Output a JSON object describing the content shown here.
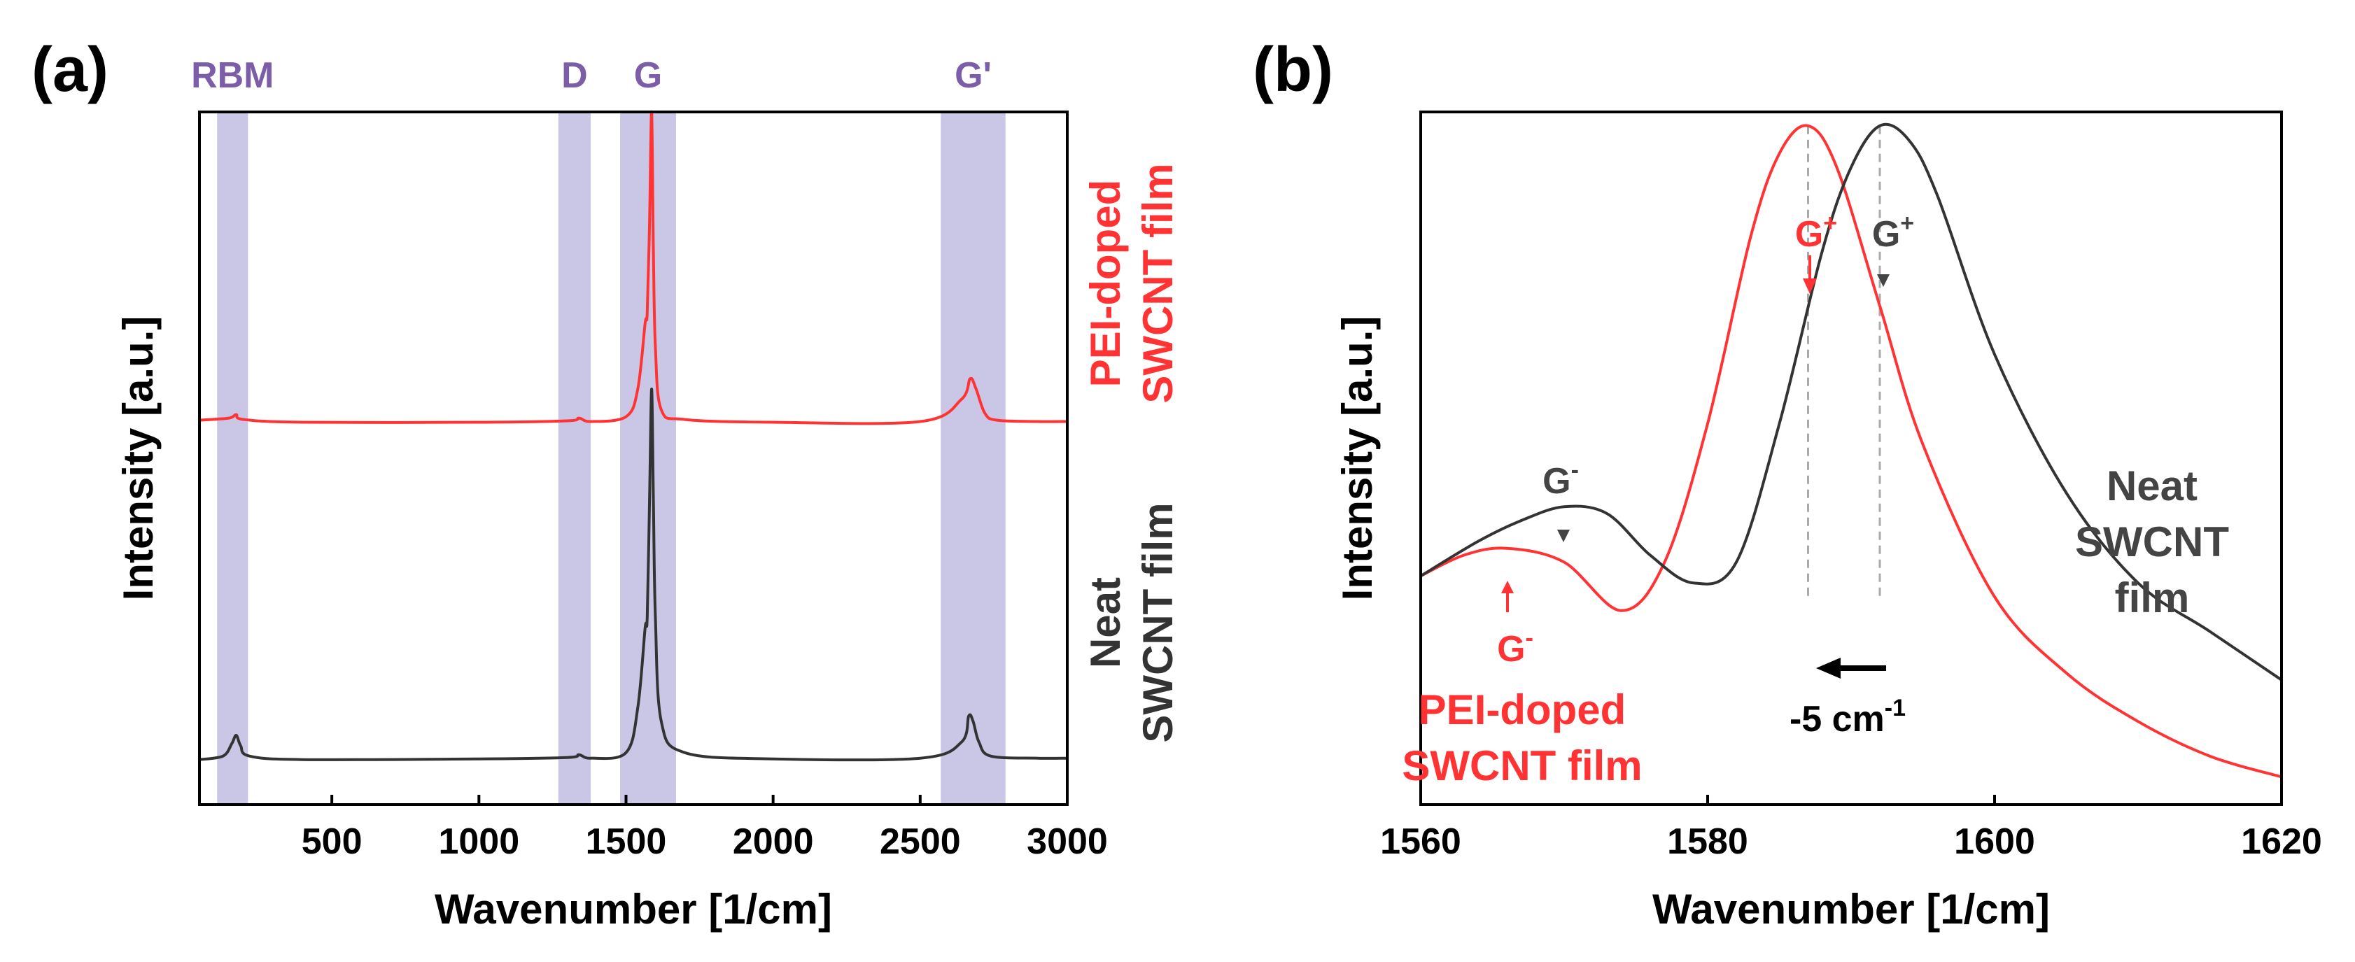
{
  "colors": {
    "red": "#ff3333",
    "black": "#333333",
    "band": "#c9c6e6",
    "band_label": "#7b5ea7",
    "guide": "#aaaaaa"
  },
  "chart_data": [
    {
      "type": "line",
      "panel": "(a)",
      "xlabel": "Wavenumber [1/cm]",
      "ylabel": "Intensity [a.u.]",
      "xlim": [
        50,
        3000
      ],
      "ylim": [
        0,
        1
      ],
      "xticks": [
        500,
        1000,
        1500,
        2000,
        2500,
        3000
      ],
      "xtick_labels": [
        "500",
        "1000",
        "1500",
        "2000",
        "2500",
        "3000"
      ],
      "bands": [
        {
          "label": "RBM",
          "from": 110,
          "to": 215
        },
        {
          "label": "D",
          "from": 1270,
          "to": 1380
        },
        {
          "label": "G",
          "from": 1480,
          "to": 1670
        },
        {
          "label": "G'",
          "from": 2570,
          "to": 2790
        }
      ],
      "series": [
        {
          "name": "PEI-doped SWCNT film",
          "color": "#ff3333",
          "x": [
            50,
            150,
            175,
            200,
            400,
            1000,
            1300,
            1340,
            1380,
            1500,
            1540,
            1565,
            1572,
            1580,
            1587,
            1593,
            1600,
            1620,
            1700,
            2000,
            2500,
            2640,
            2670,
            2690,
            2720,
            2760,
            2900,
            3000
          ],
          "y": [
            0.555,
            0.558,
            0.563,
            0.556,
            0.552,
            0.552,
            0.554,
            0.558,
            0.553,
            0.56,
            0.6,
            0.695,
            0.71,
            0.84,
            1.0,
            0.8,
            0.66,
            0.57,
            0.556,
            0.552,
            0.553,
            0.585,
            0.615,
            0.6,
            0.565,
            0.555,
            0.553,
            0.553
          ],
          "label_lines": [
            "PEI-doped",
            "SWCNT film"
          ]
        },
        {
          "name": "Neat SWCNT film",
          "color": "#333333",
          "x": [
            50,
            130,
            160,
            175,
            190,
            220,
            400,
            1000,
            1300,
            1340,
            1380,
            1500,
            1540,
            1565,
            1572,
            1580,
            1587,
            1593,
            1600,
            1620,
            1700,
            2000,
            2500,
            2640,
            2665,
            2680,
            2700,
            2740,
            2900,
            3000
          ],
          "y": [
            0.065,
            0.07,
            0.088,
            0.1,
            0.085,
            0.07,
            0.065,
            0.066,
            0.068,
            0.072,
            0.067,
            0.075,
            0.14,
            0.255,
            0.27,
            0.44,
            0.6,
            0.44,
            0.27,
            0.12,
            0.075,
            0.066,
            0.067,
            0.09,
            0.128,
            0.12,
            0.09,
            0.07,
            0.067,
            0.067
          ],
          "label_lines": [
            "Neat",
            "SWCNT film"
          ]
        }
      ]
    },
    {
      "type": "line",
      "panel": "(b)",
      "xlabel": "Wavenumber [1/cm]",
      "ylabel": "Intensity [a.u.]",
      "xlim": [
        1560,
        1620
      ],
      "ylim": [
        0,
        1
      ],
      "xticks": [
        1560,
        1580,
        1600,
        1620
      ],
      "xtick_labels": [
        "1560",
        "1580",
        "1600",
        "1620"
      ],
      "series": [
        {
          "name": "PEI-doped SWCNT film",
          "color": "#ff3333",
          "x": [
            1560,
            1563,
            1566,
            1570,
            1574,
            1577,
            1580,
            1583,
            1585,
            1587,
            1589,
            1592,
            1595,
            1600,
            1605,
            1610,
            1615,
            1620
          ],
          "y": [
            0.33,
            0.36,
            0.37,
            0.35,
            0.28,
            0.35,
            0.55,
            0.82,
            0.94,
            0.98,
            0.92,
            0.72,
            0.52,
            0.3,
            0.19,
            0.12,
            0.07,
            0.04
          ],
          "label_lines": [
            "PEI-doped",
            "SWCNT film"
          ]
        },
        {
          "name": "Neat SWCNT film",
          "color": "#333333",
          "x": [
            1560,
            1564,
            1567,
            1570,
            1573,
            1576,
            1579,
            1582,
            1585,
            1588,
            1590,
            1592,
            1594,
            1596,
            1600,
            1605,
            1610,
            1615,
            1620
          ],
          "y": [
            0.33,
            0.38,
            0.41,
            0.43,
            0.42,
            0.36,
            0.32,
            0.35,
            0.55,
            0.8,
            0.92,
            0.98,
            0.96,
            0.88,
            0.65,
            0.45,
            0.32,
            0.25,
            0.18
          ],
          "label_lines": [
            "Neat",
            "SWCNT",
            "film"
          ]
        }
      ],
      "annotations": {
        "g_plus_red": "G",
        "g_plus_black": "G",
        "g_minus_red": "G",
        "g_minus_black": "G",
        "plus_sup": "+",
        "minus_sup": "-",
        "g_plus_red_x": 1587,
        "g_plus_black_x": 1592,
        "shift_label": "-5 cm",
        "shift_sup": "-1"
      }
    }
  ]
}
